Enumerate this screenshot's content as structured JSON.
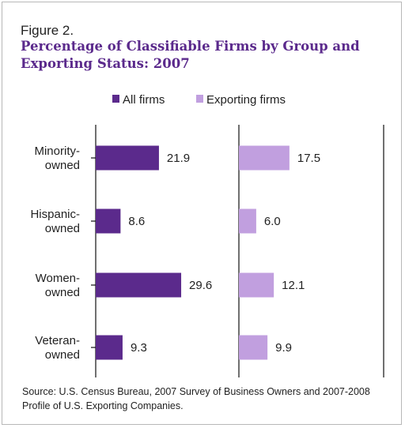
{
  "figure": {
    "label": "Figure 2.",
    "title": "Percentage of Classifiable Firms by Group and Exporting Status: 2007",
    "source": "Source: U.S. Census Bureau, 2007 Survey of Business Owners and 2007-2008 Profile of U.S. Exporting Companies."
  },
  "colors": {
    "all_firms": "#5b2a8c",
    "exporting_firms": "#c19fdf"
  },
  "chart_data": {
    "type": "bar",
    "orientation": "horizontal",
    "categories": [
      [
        "Minority-",
        "owned"
      ],
      [
        "Hispanic-",
        "owned"
      ],
      [
        "Women-",
        "owned"
      ],
      [
        "Veteran-",
        "owned"
      ]
    ],
    "series": [
      {
        "name": "All firms",
        "values": [
          21.9,
          8.6,
          29.6,
          9.3
        ],
        "labels": [
          "21.9",
          "8.6",
          "29.6",
          "9.3"
        ],
        "color": "#5b2a8c"
      },
      {
        "name": "Exporting firms",
        "values": [
          17.5,
          6.0,
          12.1,
          9.9
        ],
        "labels": [
          "17.5",
          "6.0",
          "12.1",
          "9.9"
        ],
        "color": "#c19fdf"
      }
    ],
    "xlim": [
      0,
      50
    ],
    "legend": "top",
    "grid": false
  }
}
